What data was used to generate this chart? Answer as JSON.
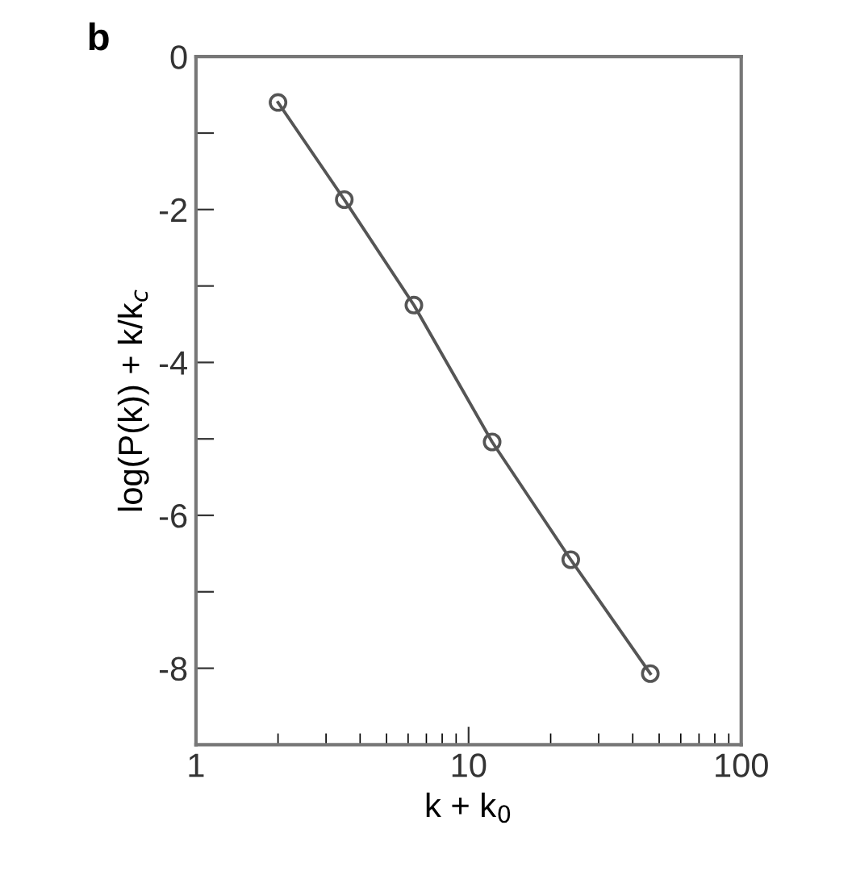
{
  "chart_data": {
    "type": "line",
    "title": "b",
    "xlabel": "k + k$_{0}$",
    "ylabel": "log(P(k)) + k/k$_{c}$",
    "log": "x",
    "marker": "circle",
    "line_style": "solid",
    "grid": false,
    "x": [
      2.0,
      3.5,
      6.3,
      12.2,
      23.7,
      46.4
    ],
    "series": [
      {
        "color": "#555555",
        "values": [
          -0.6,
          -1.87,
          -3.25,
          -5.04,
          -6.58,
          -8.07
        ]
      }
    ],
    "xlim": [
      1,
      100
    ],
    "xticks": [
      1,
      10,
      100
    ],
    "ylim": [
      -9,
      0
    ],
    "yticks": [
      0,
      {
        "value": -1,
        "label": null
      },
      -2,
      {
        "value": -3,
        "label": null
      },
      -4,
      {
        "value": -5,
        "label": null
      },
      -6,
      {
        "value": -7,
        "label": null
      },
      -8
    ]
  }
}
